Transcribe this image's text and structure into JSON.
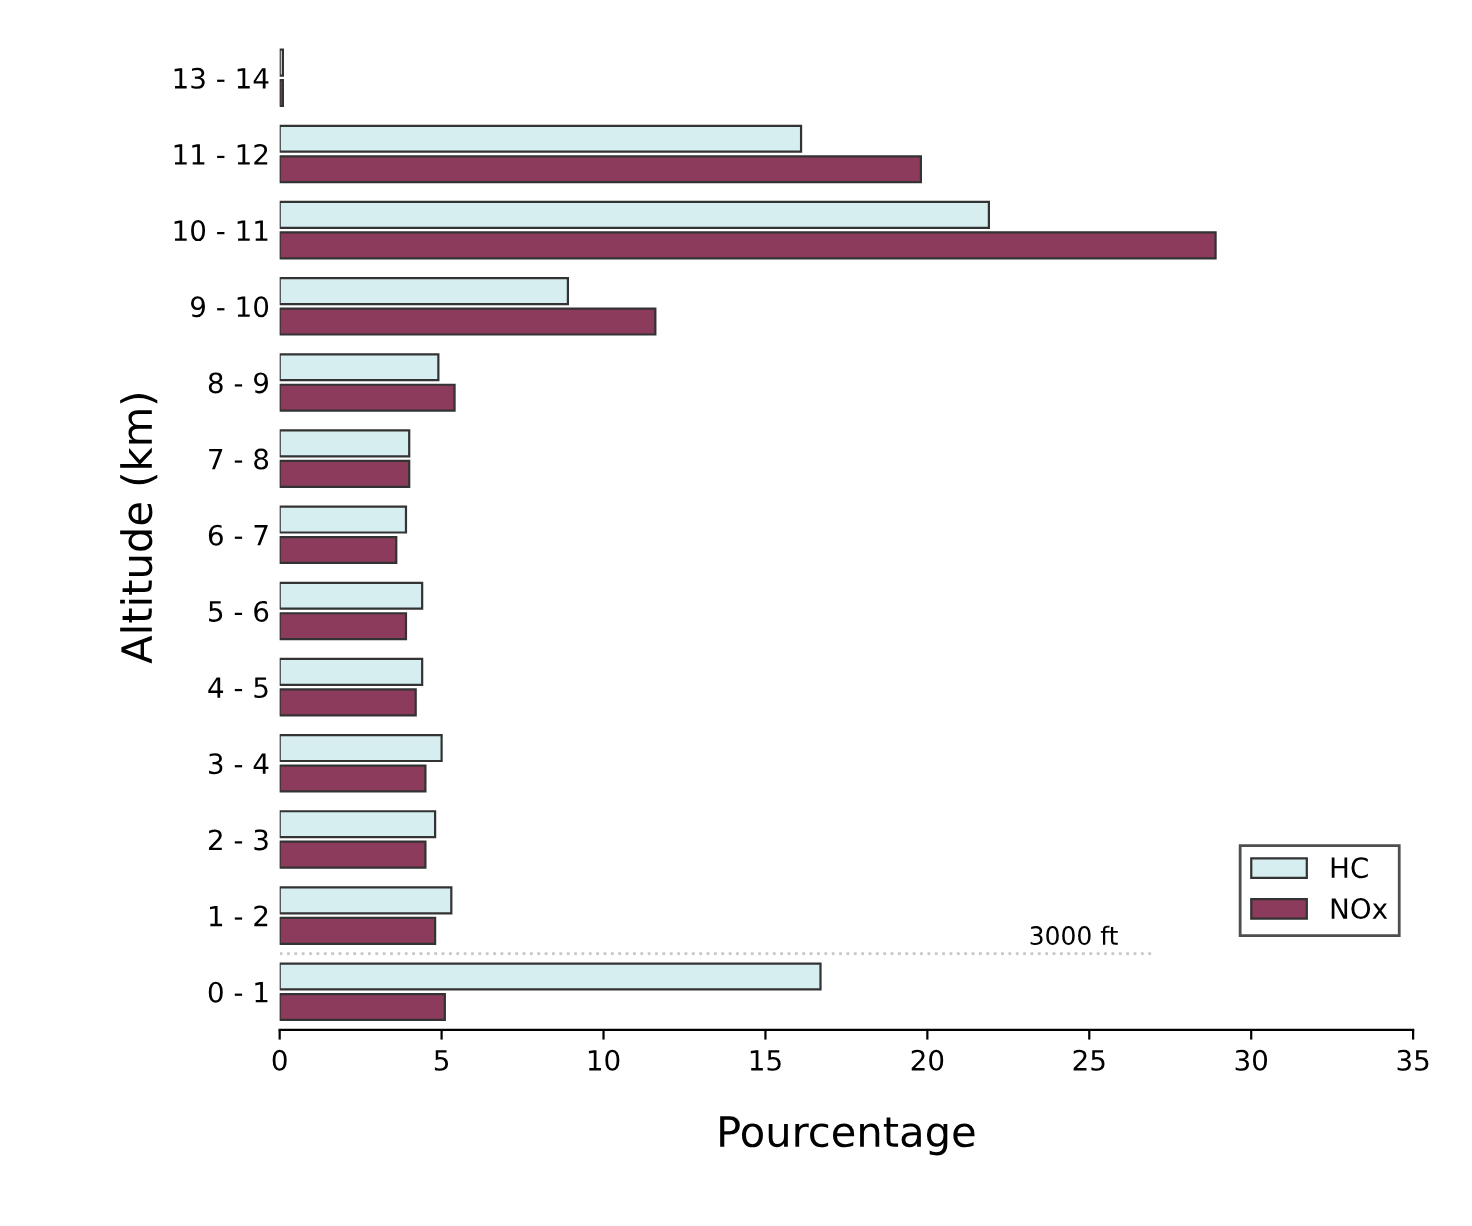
{
  "chart_data": {
    "type": "bar",
    "orientation": "horizontal",
    "xlabel": "Pourcentage",
    "ylabel": "Altitude (km)",
    "categories": [
      "13 - 14",
      "11 - 12",
      "10 - 11",
      "9 - 10",
      "8 - 9",
      "7 - 8",
      "6 - 7",
      "5 - 6",
      "4 - 5",
      "3 - 4",
      "2 - 3",
      "1 - 2",
      "0 - 1"
    ],
    "series": [
      {
        "name": "HC",
        "color": "#d6eef0",
        "values": [
          0.1,
          16.1,
          21.9,
          8.9,
          4.9,
          4.0,
          3.9,
          4.4,
          4.4,
          5.0,
          4.8,
          5.3,
          16.7
        ]
      },
      {
        "name": "NOx",
        "color": "#8c3b5c",
        "values": [
          0.1,
          19.8,
          28.9,
          11.6,
          5.4,
          4.0,
          3.6,
          3.9,
          4.2,
          4.5,
          4.5,
          4.8,
          5.1
        ]
      }
    ],
    "xlim": [
      0,
      35
    ],
    "xticks": [
      0,
      5,
      10,
      15,
      20,
      25,
      30,
      35
    ],
    "annotations": [
      "3000 ft"
    ],
    "legend": "bottom right",
    "grid": false
  }
}
